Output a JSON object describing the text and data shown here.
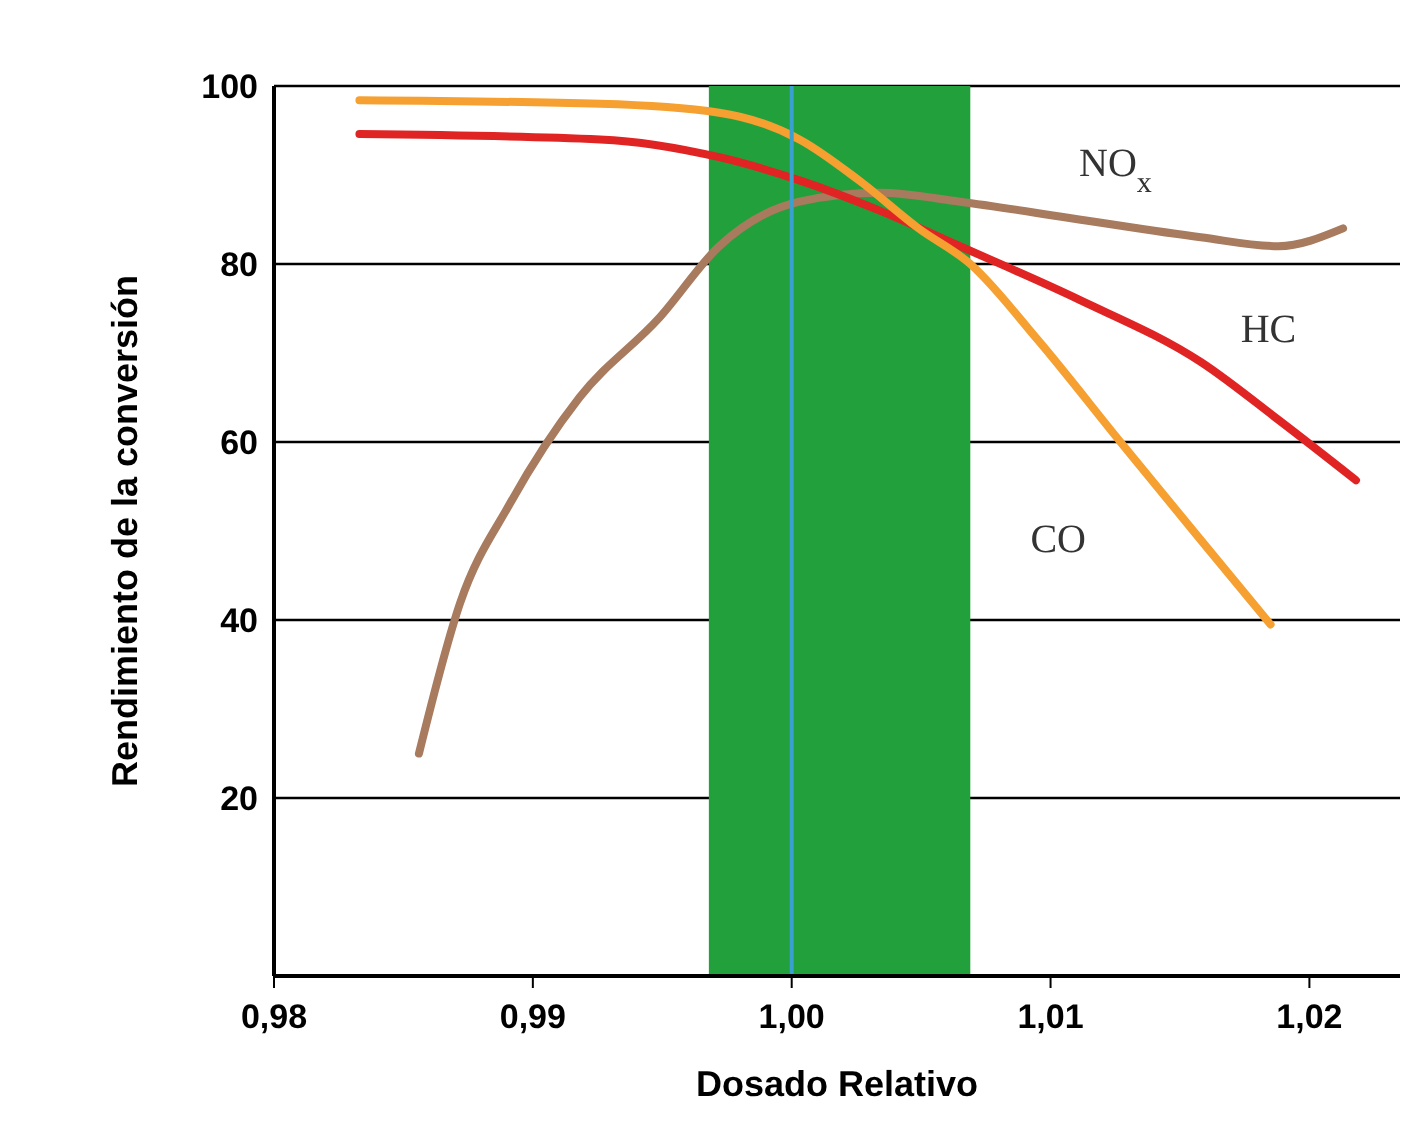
{
  "chart_data": {
    "type": "line",
    "xlabel": "Dosado Relativo",
    "ylabel": "Rendimiento de la conversión",
    "xlim": [
      0.98,
      1.0235
    ],
    "xticks": [
      {
        "value": 0.98,
        "label": "0,98"
      },
      {
        "value": 0.99,
        "label": "0,99"
      },
      {
        "value": 1.0,
        "label": "1,00"
      },
      {
        "value": 1.01,
        "label": "1,01"
      },
      {
        "value": 1.02,
        "label": "1,02"
      }
    ],
    "ylim": [
      0,
      100
    ],
    "yticks": [
      {
        "value": 0,
        "label": null
      },
      20,
      40,
      60,
      80,
      100
    ],
    "grid": "y",
    "marker": "none",
    "line_style": "solid",
    "series": [
      {
        "name": "NO$_{x}$",
        "color": "#a87a5e",
        "x": [
          0.9856,
          0.9872,
          0.9891,
          0.9918,
          0.9949,
          0.9972,
          1.0003,
          1.0034,
          1.0065,
          1.0111,
          1.0158,
          1.0188,
          1.0213
        ],
        "values": [
          25,
          42,
          53,
          65,
          74,
          82,
          87,
          88,
          87,
          85,
          83,
          82,
          84
        ]
      },
      {
        "name": "HC",
        "color": "#e02424",
        "x": [
          0.9833,
          0.9926,
          0.9972,
          1.0003,
          1.0034,
          1.0065,
          1.0111,
          1.0158,
          1.0188,
          1.0218
        ],
        "values": [
          94.6,
          94,
          92,
          89.4,
          86,
          82,
          76,
          69,
          62.5,
          55.7
        ]
      },
      {
        "name": "CO",
        "color": "#f5a030",
        "x": [
          0.9833,
          0.9926,
          0.9972,
          1.0003,
          1.0026,
          1.0049,
          1.0069,
          1.0095,
          1.0127,
          1.0158,
          1.0185
        ],
        "values": [
          98.4,
          98,
          97,
          94,
          89.4,
          84,
          80,
          71.5,
          60,
          49,
          39.5
        ]
      }
    ],
    "bands": [
      {
        "axis": "x",
        "from": 0.9968,
        "to": 1.0069,
        "color": "#22a03c"
      }
    ],
    "ref_lines": [
      {
        "axis": "x",
        "value": 1.0,
        "color": "#3aa0d0"
      }
    ]
  }
}
